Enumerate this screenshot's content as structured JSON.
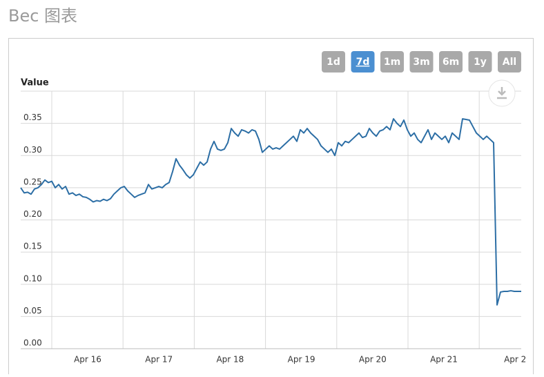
{
  "header": {
    "title": "Bec 图表"
  },
  "range_buttons": {
    "options": [
      "1d",
      "7d",
      "1m",
      "3m",
      "6m",
      "1y",
      "All"
    ],
    "selected": 1
  },
  "chart_data": {
    "type": "line",
    "ylabel": "Value",
    "color": "#2c6ea5",
    "xticks": [
      "Apr 16",
      "Apr 17",
      "Apr 18",
      "Apr 19",
      "Apr 20",
      "Apr 21",
      "Apr 2"
    ],
    "ylim": [
      0,
      0.4
    ],
    "yticks": [
      {
        "value": 0,
        "label": "0.00"
      },
      {
        "value": 0.05,
        "label": "0.05"
      },
      {
        "value": 0.1,
        "label": "0.10"
      },
      {
        "value": 0.15,
        "label": "0.15"
      },
      {
        "value": 0.2,
        "label": "0.20"
      },
      {
        "value": 0.25,
        "label": "0.25"
      },
      {
        "value": 0.3,
        "label": "0.30"
      },
      {
        "value": 0.35,
        "label": "0.35"
      }
    ],
    "grid": true,
    "values": [
      0.25,
      0.242,
      0.243,
      0.24,
      0.248,
      0.25,
      0.255,
      0.262,
      0.258,
      0.26,
      0.25,
      0.255,
      0.248,
      0.252,
      0.24,
      0.242,
      0.238,
      0.24,
      0.236,
      0.235,
      0.232,
      0.228,
      0.23,
      0.229,
      0.232,
      0.23,
      0.233,
      0.24,
      0.245,
      0.25,
      0.252,
      0.245,
      0.24,
      0.235,
      0.238,
      0.24,
      0.242,
      0.255,
      0.248,
      0.25,
      0.252,
      0.25,
      0.255,
      0.258,
      0.275,
      0.295,
      0.285,
      0.278,
      0.27,
      0.265,
      0.27,
      0.28,
      0.29,
      0.285,
      0.29,
      0.31,
      0.322,
      0.31,
      0.308,
      0.31,
      0.32,
      0.342,
      0.335,
      0.33,
      0.34,
      0.338,
      0.335,
      0.34,
      0.338,
      0.325,
      0.305,
      0.31,
      0.315,
      0.31,
      0.312,
      0.31,
      0.315,
      0.32,
      0.325,
      0.33,
      0.322,
      0.34,
      0.335,
      0.342,
      0.335,
      0.33,
      0.325,
      0.315,
      0.31,
      0.305,
      0.31,
      0.3,
      0.32,
      0.315,
      0.322,
      0.32,
      0.325,
      0.33,
      0.335,
      0.328,
      0.33,
      0.342,
      0.335,
      0.33,
      0.338,
      0.34,
      0.345,
      0.34,
      0.357,
      0.35,
      0.345,
      0.355,
      0.34,
      0.33,
      0.335,
      0.325,
      0.32,
      0.33,
      0.34,
      0.325,
      0.335,
      0.33,
      0.325,
      0.33,
      0.32,
      0.335,
      0.33,
      0.325,
      0.357,
      0.356,
      0.355,
      0.345,
      0.335,
      0.33,
      0.325,
      0.33,
      0.325,
      0.32,
      0.068,
      0.088,
      0.089,
      0.089,
      0.09,
      0.089,
      0.089,
      0.089
    ]
  }
}
